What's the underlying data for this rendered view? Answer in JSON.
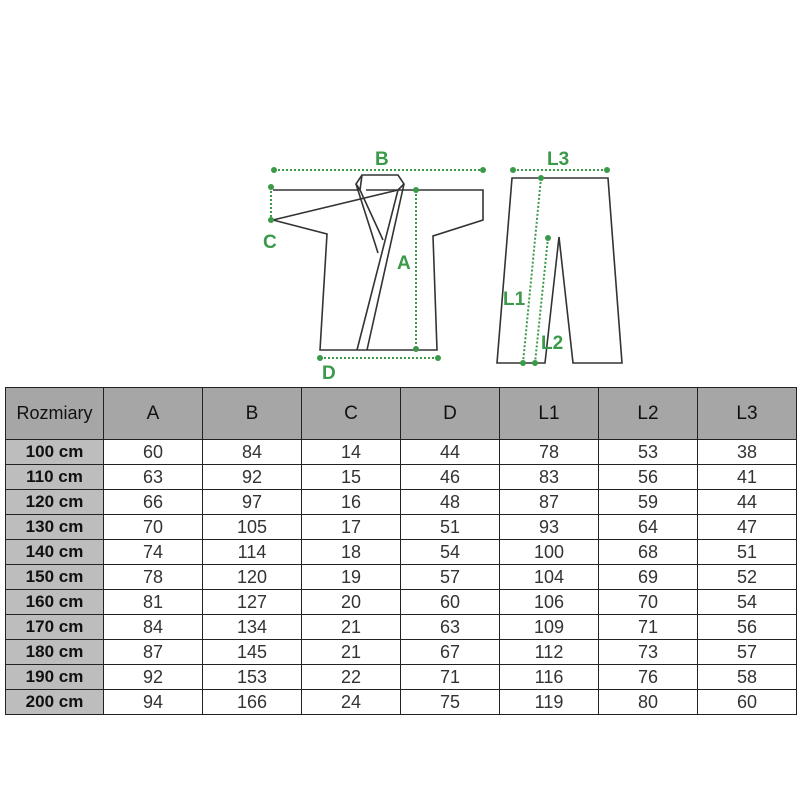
{
  "diagram": {
    "labels": {
      "A": "A",
      "B": "B",
      "C": "C",
      "D": "D",
      "L1": "L1",
      "L2": "L2",
      "L3": "L3"
    },
    "accent_color": "#3a9a4a"
  },
  "table": {
    "headers": [
      "Rozmiary",
      "A",
      "B",
      "C",
      "D",
      "L1",
      "L2",
      "L3"
    ],
    "rows": [
      [
        "100 cm",
        "60",
        "84",
        "14",
        "44",
        "78",
        "53",
        "38"
      ],
      [
        "110 cm",
        "63",
        "92",
        "15",
        "46",
        "83",
        "56",
        "41"
      ],
      [
        "120 cm",
        "66",
        "97",
        "16",
        "48",
        "87",
        "59",
        "44"
      ],
      [
        "130 cm",
        "70",
        "105",
        "17",
        "51",
        "93",
        "64",
        "47"
      ],
      [
        "140 cm",
        "74",
        "114",
        "18",
        "54",
        "100",
        "68",
        "51"
      ],
      [
        "150 cm",
        "78",
        "120",
        "19",
        "57",
        "104",
        "69",
        "52"
      ],
      [
        "160 cm",
        "81",
        "127",
        "20",
        "60",
        "106",
        "70",
        "54"
      ],
      [
        "170 cm",
        "84",
        "134",
        "21",
        "63",
        "109",
        "71",
        "56"
      ],
      [
        "180 cm",
        "87",
        "145",
        "21",
        "67",
        "112",
        "73",
        "57"
      ],
      [
        "190 cm",
        "92",
        "153",
        "22",
        "71",
        "116",
        "76",
        "58"
      ],
      [
        "200 cm",
        "94",
        "166",
        "24",
        "75",
        "119",
        "80",
        "60"
      ]
    ]
  }
}
